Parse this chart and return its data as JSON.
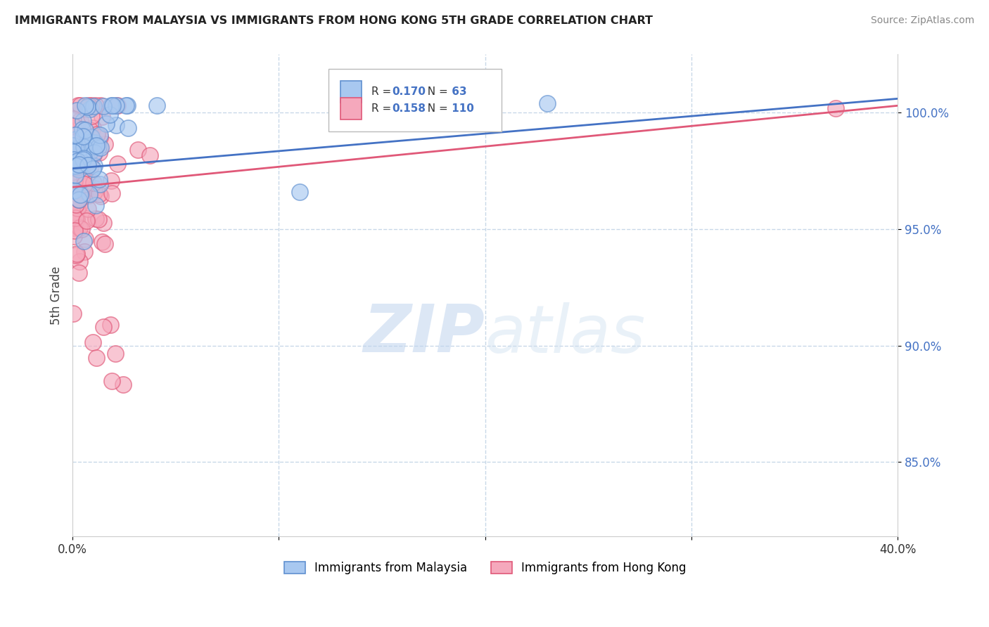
{
  "title": "IMMIGRANTS FROM MALAYSIA VS IMMIGRANTS FROM HONG KONG 5TH GRADE CORRELATION CHART",
  "source": "Source: ZipAtlas.com",
  "ylabel": "5th Grade",
  "xlim": [
    0.0,
    0.4
  ],
  "ylim": [
    0.818,
    1.025
  ],
  "yticks": [
    0.85,
    0.9,
    0.95,
    1.0
  ],
  "yticklabels": [
    "85.0%",
    "90.0%",
    "95.0%",
    "100.0%"
  ],
  "xtick_vals": [
    0.0,
    0.1,
    0.2,
    0.3,
    0.4
  ],
  "xticklabels": [
    "0.0%",
    "",
    "",
    "",
    "40.0%"
  ],
  "malaysia_color": "#A8C8F0",
  "malaysia_edge": "#6090D0",
  "hongkong_color": "#F5A8BC",
  "hongkong_edge": "#E05878",
  "malaysia_line_color": "#4472C4",
  "hongkong_line_color": "#E05878",
  "R_malaysia": 0.17,
  "N_malaysia": 63,
  "R_hongkong": 0.158,
  "N_hongkong": 110,
  "watermark_zip": "ZIP",
  "watermark_atlas": "atlas",
  "legend_malaysia": "Immigrants from Malaysia",
  "legend_hongkong": "Immigrants from Hong Kong",
  "background_color": "#ffffff",
  "grid_color": "#c8d8e8",
  "label_color": "#4472C4",
  "value_color": "#4472C4",
  "seed": 12345
}
